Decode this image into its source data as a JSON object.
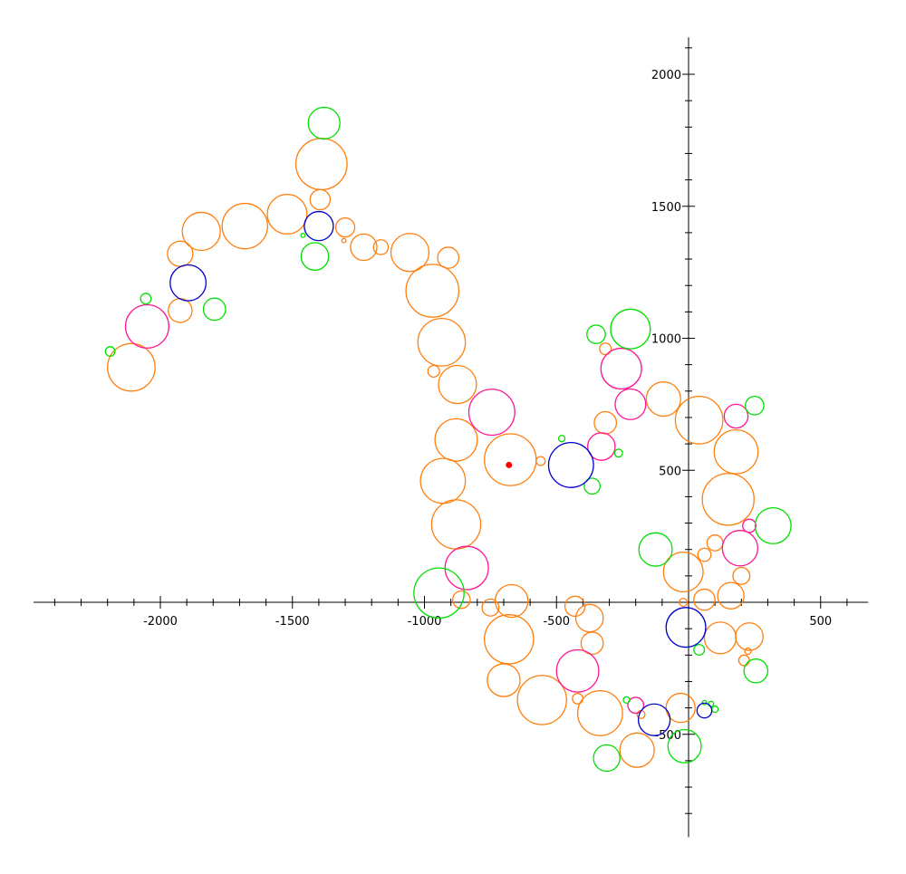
{
  "chart_data": {
    "type": "scatter",
    "title": "",
    "xlabel": "",
    "ylabel": "",
    "xlim": [
      -2480,
      680
    ],
    "ylim": [
      -890,
      2140
    ],
    "grid": false,
    "x_ticks": [
      -2000,
      -1500,
      -1000,
      -500,
      500
    ],
    "x_tick_labels": [
      "-2000",
      "-1500",
      "-1000",
      "-500",
      "500"
    ],
    "y_ticks": [
      -500,
      500,
      1000,
      1500,
      2000
    ],
    "y_tick_labels": [
      "-500",
      "500",
      "1000",
      "1500",
      "2000"
    ],
    "marker": {
      "x": -680,
      "y": 520,
      "color": "#ff0000"
    },
    "colors": {
      "orange": "#ff7f0e",
      "magenta": "#ff1493",
      "green": "#00e000",
      "blue": "#0000cc",
      "axis": "#000000"
    },
    "series": [
      {
        "color_key": "orange",
        "circles": [
          [
            -2110,
            890,
            90
          ],
          [
            -1925,
            1105,
            45
          ],
          [
            -1925,
            1320,
            48
          ],
          [
            -1845,
            1405,
            72
          ],
          [
            -1680,
            1425,
            86
          ],
          [
            -1520,
            1470,
            75
          ],
          [
            -1390,
            1660,
            97
          ],
          [
            -1395,
            1525,
            38
          ],
          [
            -1300,
            1420,
            36
          ],
          [
            -1230,
            1345,
            50
          ],
          [
            -1165,
            1345,
            28
          ],
          [
            -1055,
            1325,
            72
          ],
          [
            -910,
            1305,
            40
          ],
          [
            -970,
            1180,
            100
          ],
          [
            -935,
            985,
            90
          ],
          [
            -965,
            875,
            22
          ],
          [
            -875,
            825,
            72
          ],
          [
            -880,
            615,
            80
          ],
          [
            -930,
            460,
            85
          ],
          [
            -880,
            295,
            93
          ],
          [
            -675,
            540,
            98
          ],
          [
            -560,
            535,
            17
          ],
          [
            -315,
            680,
            42
          ],
          [
            -95,
            770,
            65
          ],
          [
            40,
            690,
            90
          ],
          [
            180,
            570,
            83
          ],
          [
            150,
            390,
            98
          ],
          [
            100,
            225,
            30
          ],
          [
            60,
            180,
            25
          ],
          [
            -20,
            115,
            75
          ],
          [
            200,
            100,
            32
          ],
          [
            160,
            25,
            50
          ],
          [
            60,
            10,
            40
          ],
          [
            -670,
            5,
            62
          ],
          [
            -860,
            10,
            33
          ],
          [
            -750,
            -20,
            32
          ],
          [
            -680,
            -140,
            93
          ],
          [
            -700,
            -295,
            62
          ],
          [
            -555,
            -370,
            93
          ],
          [
            -430,
            -15,
            38
          ],
          [
            -375,
            -60,
            52
          ],
          [
            -365,
            -155,
            42
          ],
          [
            -420,
            -365,
            20
          ],
          [
            -335,
            -420,
            85
          ],
          [
            -180,
            -425,
            15
          ],
          [
            -195,
            -560,
            65
          ],
          [
            -30,
            -400,
            55
          ],
          [
            -20,
            0,
            15
          ],
          [
            120,
            -135,
            60
          ],
          [
            230,
            -130,
            52
          ],
          [
            210,
            -220,
            20
          ],
          [
            225,
            -185,
            12
          ],
          [
            -315,
            960,
            22
          ],
          [
            -1305,
            1370,
            8
          ]
        ]
      },
      {
        "color_key": "magenta",
        "circles": [
          [
            -2050,
            1045,
            82
          ],
          [
            -745,
            720,
            87
          ],
          [
            -255,
            885,
            77
          ],
          [
            -220,
            750,
            58
          ],
          [
            -330,
            590,
            52
          ],
          [
            -840,
            130,
            82
          ],
          [
            -420,
            -260,
            80
          ],
          [
            -200,
            -390,
            30
          ],
          [
            180,
            705,
            45
          ],
          [
            195,
            205,
            67
          ],
          [
            230,
            290,
            25
          ]
        ]
      },
      {
        "color_key": "green",
        "circles": [
          [
            -1380,
            1815,
            60
          ],
          [
            -1415,
            1310,
            52
          ],
          [
            -1460,
            1390,
            8
          ],
          [
            -1795,
            1110,
            42
          ],
          [
            -2055,
            1150,
            20
          ],
          [
            -2190,
            950,
            18
          ],
          [
            -945,
            35,
            95
          ],
          [
            -480,
            620,
            12
          ],
          [
            -365,
            440,
            30
          ],
          [
            -350,
            1015,
            35
          ],
          [
            -220,
            1035,
            75
          ],
          [
            -265,
            565,
            15
          ],
          [
            -125,
            200,
            63
          ],
          [
            320,
            290,
            68
          ],
          [
            250,
            745,
            35
          ],
          [
            -235,
            -370,
            12
          ],
          [
            -15,
            -545,
            63
          ],
          [
            -310,
            -590,
            50
          ],
          [
            255,
            -260,
            45
          ],
          [
            40,
            -180,
            20
          ],
          [
            60,
            -380,
            8
          ],
          [
            85,
            -385,
            10
          ],
          [
            100,
            -405,
            12
          ]
        ]
      },
      {
        "color_key": "blue",
        "circles": [
          [
            -1895,
            1210,
            68
          ],
          [
            -1400,
            1425,
            55
          ],
          [
            -445,
            520,
            85
          ],
          [
            -10,
            -95,
            75
          ],
          [
            -130,
            -445,
            60
          ],
          [
            60,
            -410,
            28
          ]
        ]
      }
    ]
  }
}
